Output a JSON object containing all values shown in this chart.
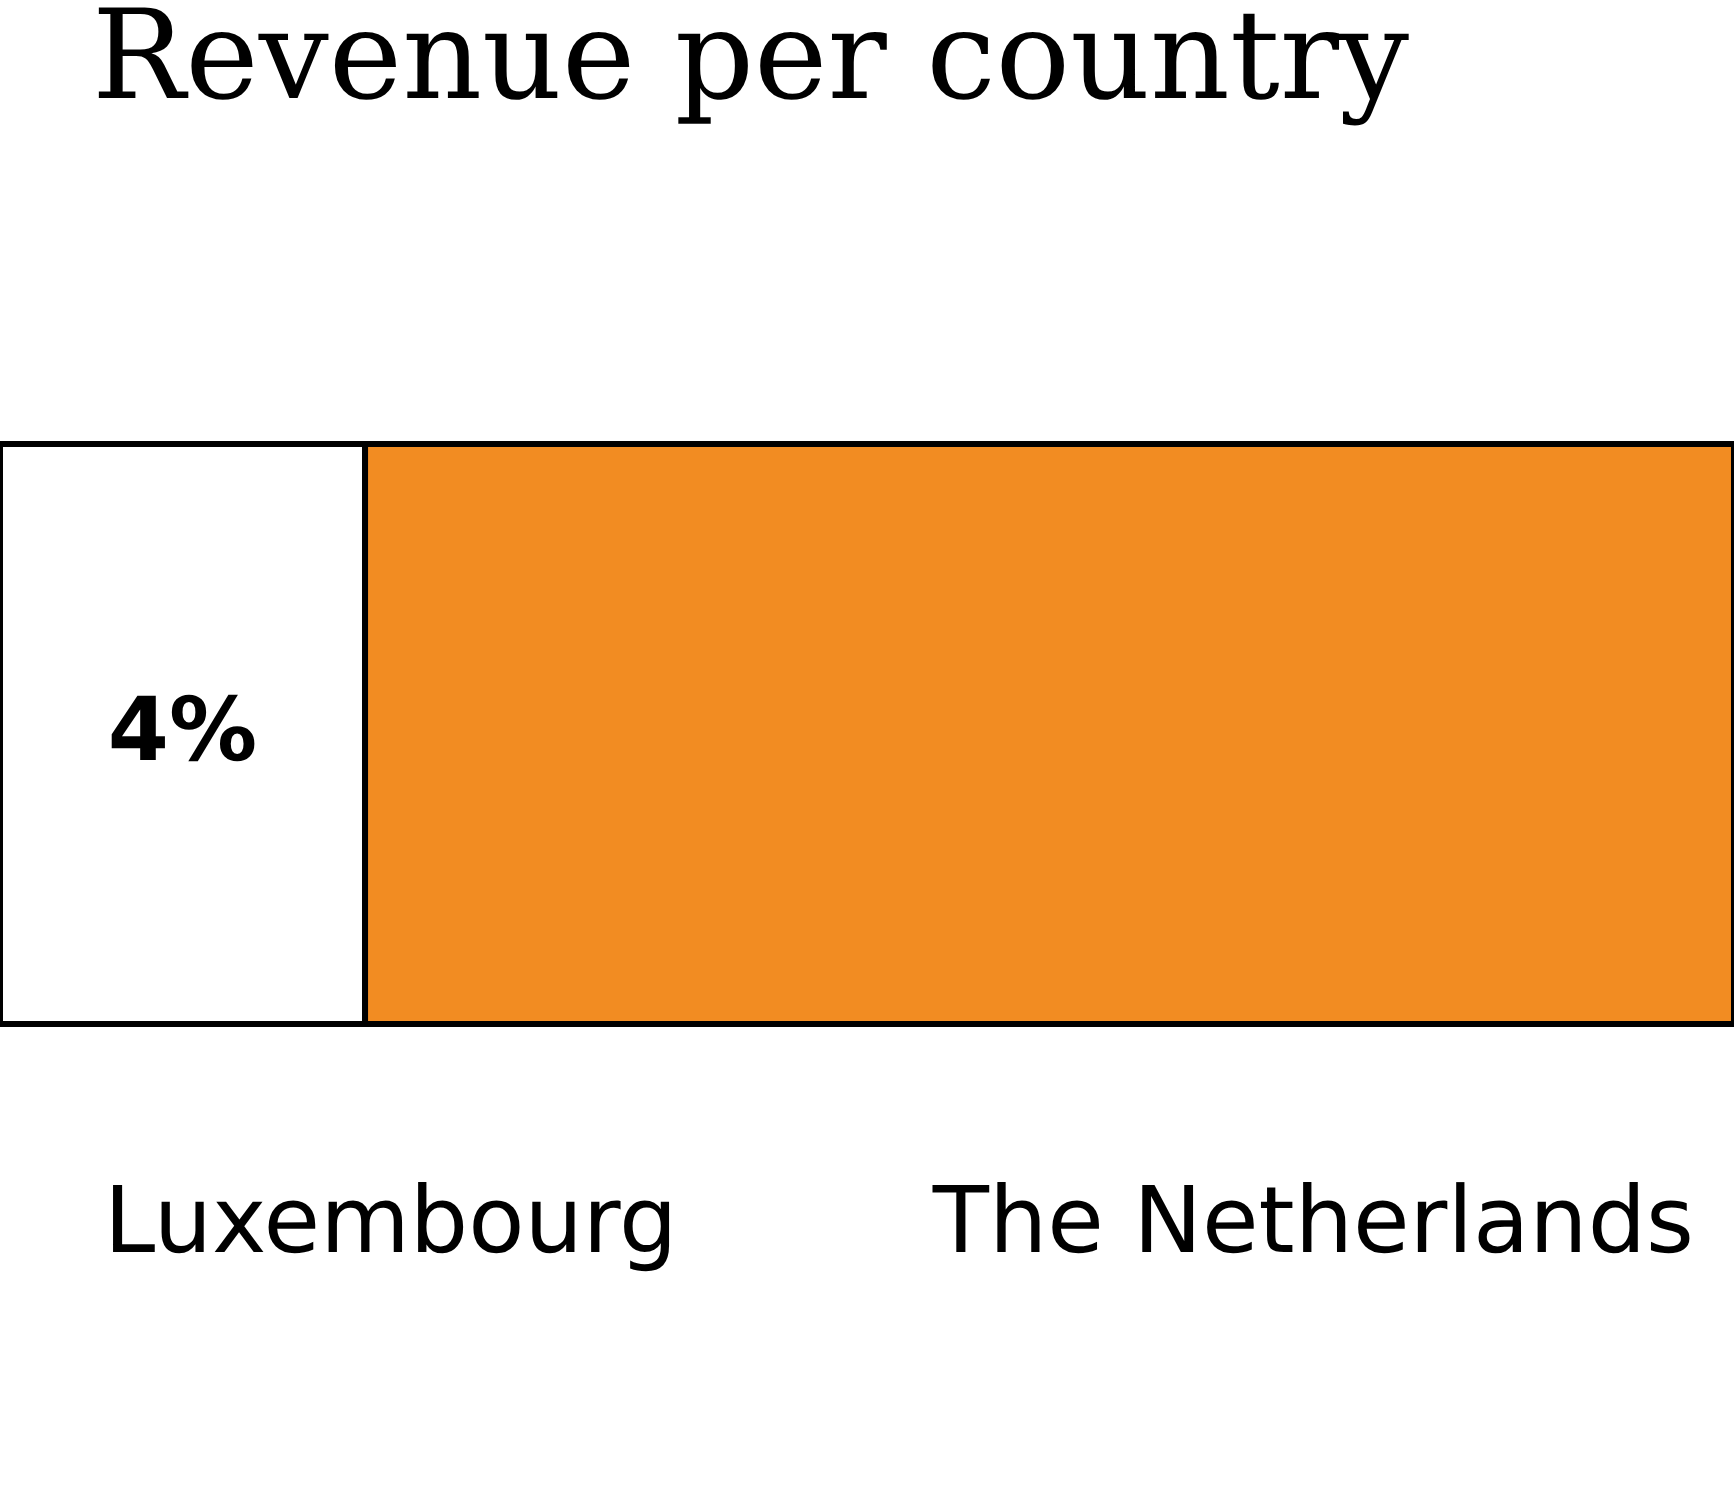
{
  "chart_data": {
    "type": "bar",
    "title": "Revenue per country",
    "orientation": "horizontal",
    "stacked": true,
    "categories": [
      null
    ],
    "xlim": [
      0,
      19
    ],
    "series": [
      {
        "name": "Luxembourg",
        "color": "#ffffff",
        "values": [
          4
        ],
        "value_labels": [
          "4%"
        ]
      },
      {
        "name": "The Netherlands",
        "color": "#f28c22",
        "values": [
          15
        ],
        "value_labels": [
          null
        ]
      }
    ]
  }
}
